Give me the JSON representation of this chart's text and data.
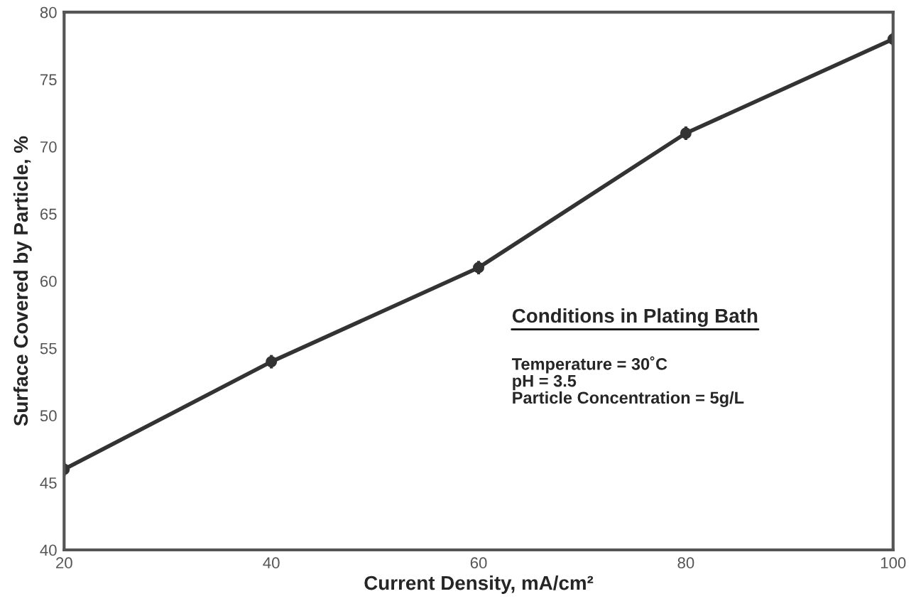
{
  "chart_data": {
    "type": "line",
    "xlabel": "Current Density, mA/cm²",
    "ylabel": "Surface Covered by Particle, %",
    "x": [
      20,
      40,
      60,
      80,
      100
    ],
    "series": [
      {
        "color": "#333333",
        "values": [
          46,
          54,
          61,
          71,
          78
        ],
        "errors": [
          0.5,
          0.5,
          0.5,
          0.5,
          0.5
        ]
      }
    ],
    "xlim": [
      20,
      100
    ],
    "xticks": [
      20,
      40,
      60,
      80,
      100
    ],
    "ylim": [
      40,
      80
    ],
    "yticks": [
      40,
      45,
      50,
      55,
      60,
      65,
      70,
      75,
      80
    ],
    "marker": "circle",
    "line_style": "solid",
    "grid": false,
    "legend": false,
    "annotations": [
      "Conditions in Plating Bath",
      "Temperature = 30˚C\npH = 3.5\nParticle Concentration = 5g/L"
    ]
  }
}
